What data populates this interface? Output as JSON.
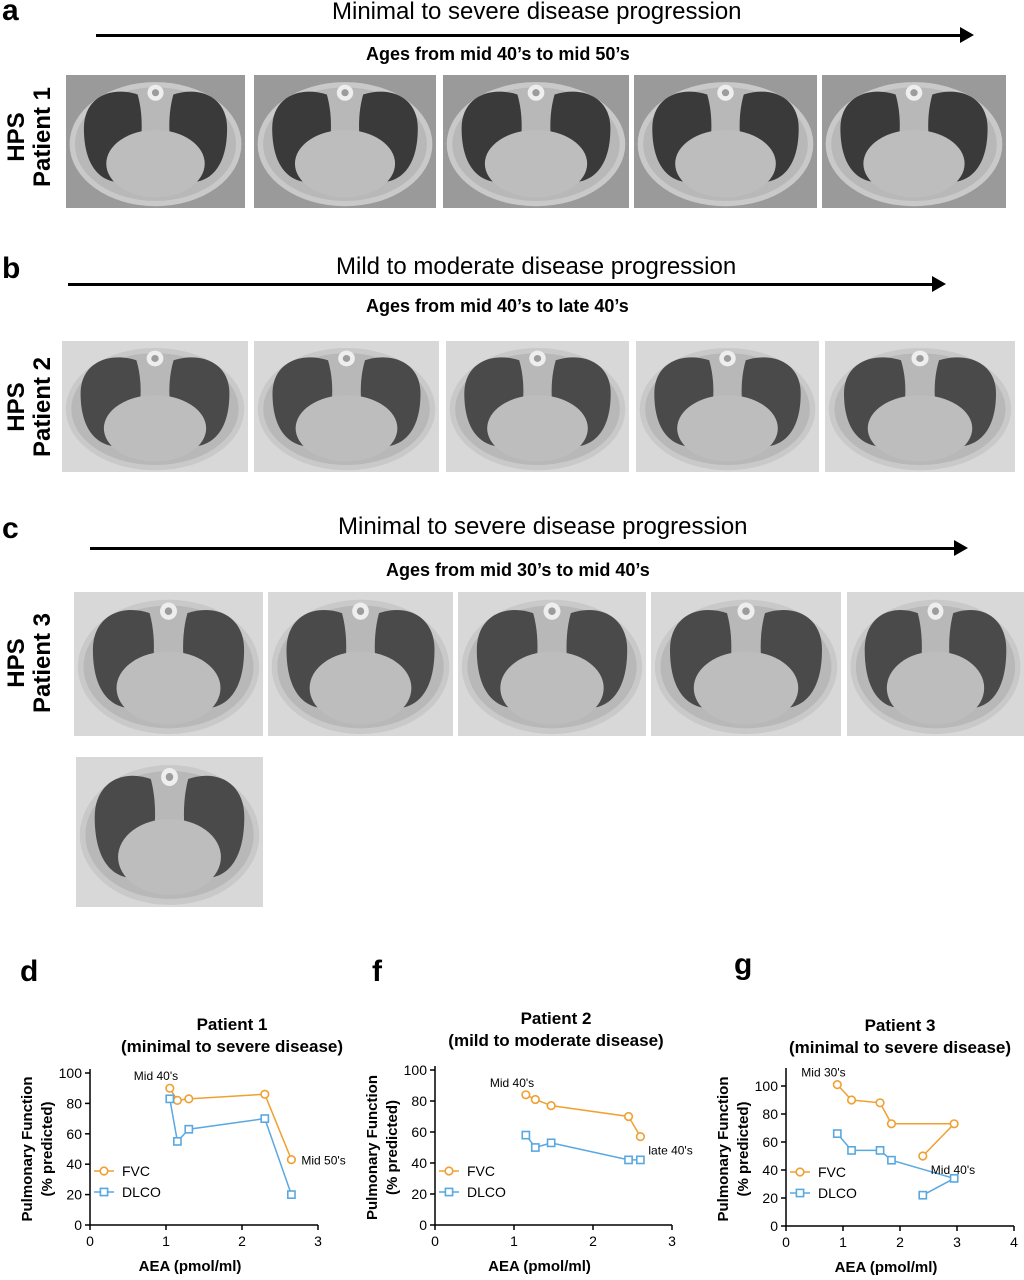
{
  "colors": {
    "fvc": "#f0a030",
    "dlco": "#5aa8e0"
  },
  "panels": {
    "a": {
      "label": "a",
      "title": "Minimal to severe disease progression",
      "subtitle": "Ages from mid 40’s to mid 50’s",
      "row_label_1": "HPS",
      "row_label_2": "Patient 1"
    },
    "b": {
      "label": "b",
      "title": "Mild to moderate disease progression",
      "subtitle": "Ages from mid 40’s to late 40’s",
      "row_label_1": "HPS",
      "row_label_2": "Patient 2"
    },
    "c": {
      "label": "c",
      "title": "Minimal to severe disease progression",
      "subtitle": "Ages from mid 30’s to mid 40’s",
      "row_label_1": "HPS",
      "row_label_2": "Patient  3"
    },
    "d": {
      "label": "d"
    },
    "f": {
      "label": "f"
    },
    "g": {
      "label": "g"
    }
  },
  "chart_data": [
    {
      "type": "line",
      "panel": "d",
      "title": [
        "Patient 1",
        "(minimal to severe disease)"
      ],
      "xlabel": "AEA (pmol/ml)",
      "ylabel": [
        "Pulmonary  Function",
        "(% predicted)"
      ],
      "xlim": [
        0,
        3
      ],
      "ylim": [
        0,
        100
      ],
      "xticks": [
        0,
        1,
        2,
        3
      ],
      "yticks": [
        0,
        20,
        40,
        60,
        80,
        100
      ],
      "legend": "bottom-left",
      "series": [
        {
          "name": "FVC",
          "marker": "circle",
          "points": [
            [
              1.05,
              90
            ],
            [
              1.15,
              82
            ],
            [
              1.3,
              83
            ],
            [
              2.3,
              86
            ],
            [
              2.65,
              43
            ]
          ]
        },
        {
          "name": "DLCO",
          "marker": "square",
          "points": [
            [
              1.05,
              83
            ],
            [
              1.15,
              55
            ],
            [
              1.3,
              63
            ],
            [
              2.3,
              70
            ],
            [
              2.65,
              20
            ]
          ]
        }
      ],
      "annotations": [
        {
          "text": "Mid 40's",
          "x": 1.05,
          "y": 90,
          "pos": "above-left"
        },
        {
          "text": "Mid 50's",
          "x": 2.65,
          "y": 43,
          "pos": "right"
        }
      ]
    },
    {
      "type": "line",
      "panel": "f",
      "title": [
        "Patient 2",
        "(mild to moderate disease)"
      ],
      "xlabel": "AEA (pmol/ml)",
      "ylabel": [
        "Pulmonary  Function",
        "(% predicted)"
      ],
      "xlim": [
        0,
        3
      ],
      "ylim": [
        0,
        100
      ],
      "xticks": [
        0,
        1,
        2,
        3
      ],
      "yticks": [
        0,
        20,
        40,
        60,
        80,
        100
      ],
      "legend": "bottom-left",
      "series": [
        {
          "name": "FVC",
          "marker": "circle",
          "points": [
            [
              1.15,
              84
            ],
            [
              1.27,
              81
            ],
            [
              1.47,
              77
            ],
            [
              2.45,
              70
            ],
            [
              2.6,
              57
            ]
          ]
        },
        {
          "name": "DLCO",
          "marker": "square",
          "points": [
            [
              1.15,
              58
            ],
            [
              1.27,
              50
            ],
            [
              1.47,
              53
            ],
            [
              2.45,
              42
            ],
            [
              2.6,
              42
            ]
          ]
        }
      ],
      "annotations": [
        {
          "text": "Mid 40's",
          "x": 1.15,
          "y": 84,
          "pos": "above-left"
        },
        {
          "text": "late 40's",
          "x": 2.6,
          "y": 57,
          "pos": "below-right"
        }
      ]
    },
    {
      "type": "line",
      "panel": "g",
      "title": [
        "Patient 3",
        "(minimal to severe disease)"
      ],
      "xlabel": "AEA (pmol/ml)",
      "ylabel": [
        "Pulmonary  Function",
        "(% predicted)"
      ],
      "xlim": [
        0,
        4
      ],
      "ylim": [
        0,
        110
      ],
      "xticks": [
        0,
        1,
        2,
        3,
        4
      ],
      "yticks": [
        0,
        20,
        40,
        60,
        80,
        100
      ],
      "legend": "bottom-left",
      "series": [
        {
          "name": "FVC",
          "marker": "circle",
          "points": [
            [
              0.9,
              101
            ],
            [
              1.15,
              90
            ],
            [
              1.65,
              88
            ],
            [
              1.85,
              73
            ],
            [
              2.95,
              73
            ],
            [
              2.4,
              50
            ]
          ]
        },
        {
          "name": "DLCO",
          "marker": "square",
          "points": [
            [
              0.9,
              66
            ],
            [
              1.15,
              54
            ],
            [
              1.65,
              54
            ],
            [
              1.85,
              47
            ],
            [
              2.95,
              34
            ],
            [
              2.4,
              22
            ]
          ]
        }
      ],
      "annotations": [
        {
          "text": "Mid 30's",
          "x": 0.9,
          "y": 101,
          "pos": "above-left"
        },
        {
          "text": "Mid 40's",
          "x": 2.4,
          "y": 50,
          "pos": "below-right"
        }
      ]
    }
  ]
}
